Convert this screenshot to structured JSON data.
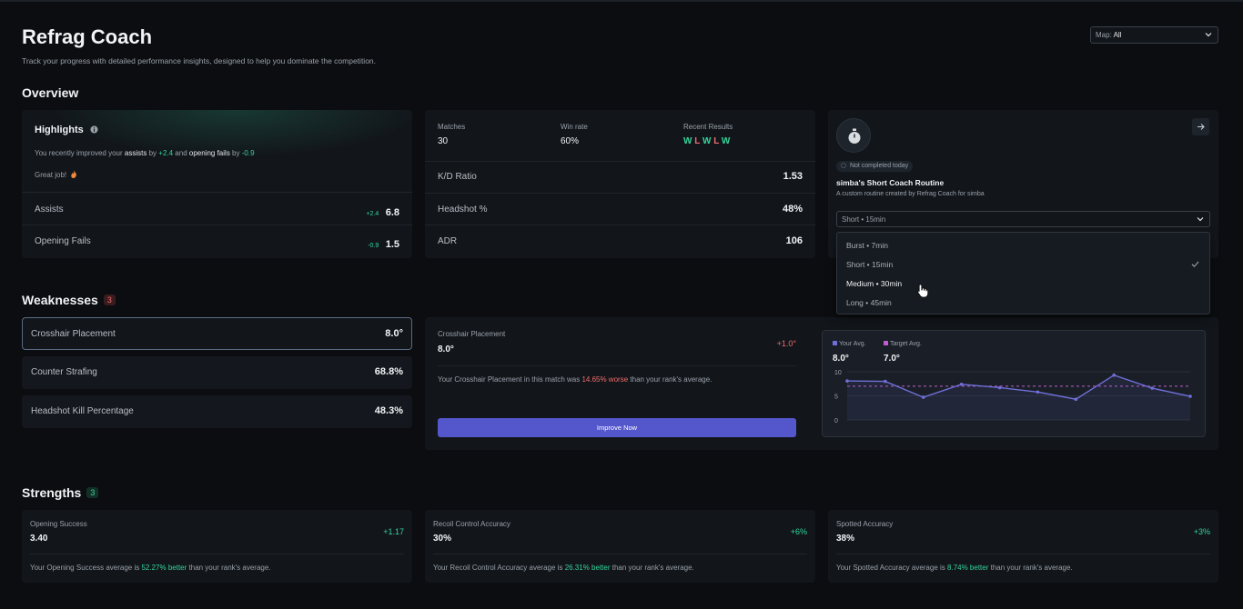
{
  "header": {
    "title": "Refrag Coach",
    "subtitle": "Track your progress with detailed performance insights, designed to help you dominate the competition.",
    "map_label": "Map:",
    "map_value": "All"
  },
  "overview": {
    "heading": "Overview",
    "highlights": {
      "title": "Highlights",
      "line_prefix": "You recently improved your",
      "stat1": "assists",
      "by1": "by",
      "delta1": "+2.4",
      "and": "and",
      "stat2": "opening fails",
      "by2": "by",
      "delta2": "-0.9",
      "great": "Great job!",
      "rows": [
        {
          "label": "Assists",
          "delta": "+2.4",
          "value": "6.8"
        },
        {
          "label": "Opening Fails",
          "delta": "-0.9",
          "value": "1.5"
        }
      ]
    },
    "stats": {
      "matches_label": "Matches",
      "matches_value": "30",
      "winrate_label": "Win rate",
      "winrate_value": "60%",
      "recent_label": "Recent Results",
      "recent": [
        "W",
        "L",
        "W",
        "L",
        "W"
      ],
      "rows": [
        {
          "label": "K/D Ratio",
          "value": "1.53"
        },
        {
          "label": "Headshot %",
          "value": "48%"
        },
        {
          "label": "ADR",
          "value": "106"
        }
      ]
    },
    "routine": {
      "status": "Not completed today",
      "title": "simba's Short Coach Routine",
      "desc": "A custom routine created by Refrag Coach for simba",
      "selected": "Short • 15min",
      "options": [
        "Burst • 7min",
        "Short • 15min",
        "Medium • 30min",
        "Long • 45min"
      ]
    }
  },
  "weaknesses": {
    "heading": "Weaknesses",
    "count": "3",
    "items": [
      {
        "label": "Crosshair Placement",
        "value": "8.0°"
      },
      {
        "label": "Counter Strafing",
        "value": "68.8%"
      },
      {
        "label": "Headshot Kill Percentage",
        "value": "48.3%"
      }
    ],
    "detail": {
      "title": "Crosshair Placement",
      "value": "8.0°",
      "delta": "+1.0°",
      "text_prefix": "Your Crosshair Placement in this match was",
      "text_pct": "14.65% worse",
      "text_suffix": "than your rank's average.",
      "button": "Improve Now"
    },
    "chart": {
      "legend_your": "Your Avg.",
      "legend_target": "Target Avg.",
      "your_value": "8.0°",
      "target_value": "7.0°"
    }
  },
  "chart_data": {
    "type": "line",
    "ylim": [
      0,
      10
    ],
    "yticks": [
      "10",
      "5",
      "0"
    ],
    "target": 7,
    "series": [
      {
        "name": "Your Avg.",
        "values": [
          8.1,
          8.0,
          4.7,
          7.4,
          6.7,
          5.8,
          4.3,
          9.3,
          6.6,
          4.9
        ]
      }
    ],
    "colors": {
      "line": "#6f6fd8",
      "target": "#c25bd0"
    }
  },
  "strengths": {
    "heading": "Strengths",
    "count": "3",
    "items": [
      {
        "label": "Opening Success",
        "value": "3.40",
        "delta": "+1.17",
        "text_prefix": "Your Opening Success average is",
        "pct": "52.27% better",
        "suffix": "than your rank's average."
      },
      {
        "label": "Recoil Control Accuracy",
        "value": "30%",
        "delta": "+6%",
        "text_prefix": "Your Recoil Control Accuracy average is",
        "pct": "26.31% better",
        "suffix": "than your rank's average."
      },
      {
        "label": "Spotted Accuracy",
        "value": "38%",
        "delta": "+3%",
        "text_prefix": "Your Spotted Accuracy average is",
        "pct": "8.74% better",
        "suffix": "than your rank's average."
      }
    ]
  }
}
